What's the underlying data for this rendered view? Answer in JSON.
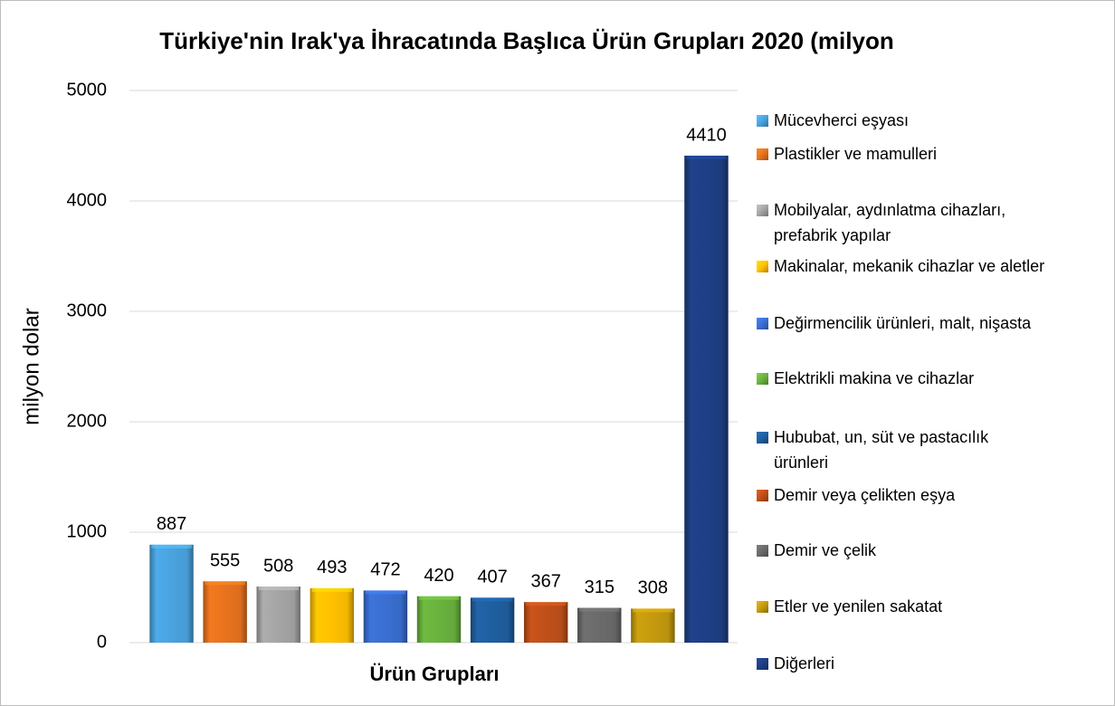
{
  "chart_data": {
    "type": "bar",
    "title": "Türkiye'nin Irak'ya İhracatında Başlıca Ürün Grupları 2020 (milyon",
    "x_label": "Ürün Grupları",
    "y_label": "milyon dolar",
    "categories": [
      "Mücevherci eşyası",
      "Plastikler ve mamulleri",
      "Mobilyalar, aydınlatma cihazları, prefabrik yapılar",
      "Makinalar, mekanik cihazlar ve aletler",
      "Değirmencilik ürünleri, malt, nişasta",
      "Elektrikli makina ve cihazlar",
      "Hububat, un, süt ve pastacılık ürünleri",
      "Demir veya çelikten eşya",
      "Demir ve çelik",
      "Etler ve yenilen sakatat",
      "Diğerleri"
    ],
    "values": [
      887,
      555,
      508,
      493,
      472,
      420,
      407,
      367,
      315,
      308,
      4410
    ],
    "colors": [
      "#4aa3df",
      "#e8731e",
      "#a5a5a5",
      "#ffc000",
      "#3a6fd1",
      "#6ab23e",
      "#1f5fa0",
      "#c0501a",
      "#6b6b6b",
      "#c49a0e",
      "#1e3f85"
    ],
    "ylim": [
      0,
      5000
    ],
    "yticks": [
      0,
      1000,
      2000,
      3000,
      4000,
      5000
    ],
    "grid": true,
    "legend": "right"
  }
}
